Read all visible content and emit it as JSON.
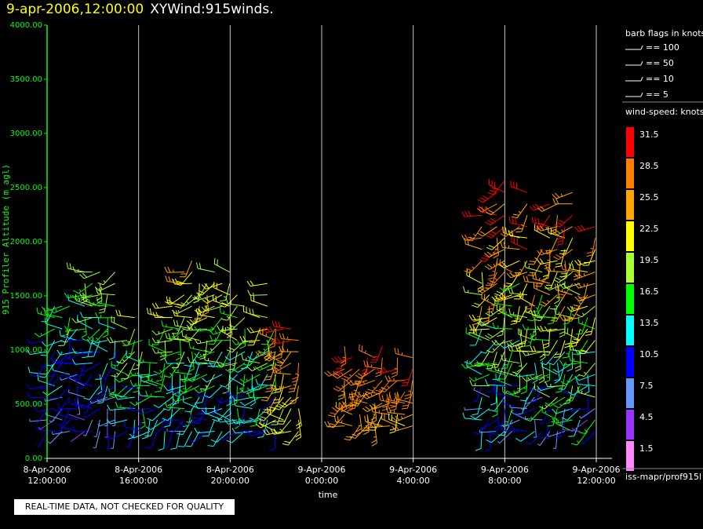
{
  "header": {
    "timestamp": "9-apr-2006,12:00:00",
    "title": "XYWind:915winds."
  },
  "chart_data": {
    "type": "wind-barb time-height plot",
    "ylabel": "915 Profiler Altitude (m agl)",
    "xlabel": "time",
    "ylim": [
      0,
      4000
    ],
    "y_ticks": [
      "0.00",
      "500.00",
      "1000.00",
      "1500.00",
      "2000.00",
      "2500.00",
      "3000.00",
      "3500.00",
      "4000.00"
    ],
    "x_ticks": [
      {
        "date": "8-Apr-2006",
        "time": "12:00:00"
      },
      {
        "date": "8-Apr-2006",
        "time": "16:00:00"
      },
      {
        "date": "8-Apr-2006",
        "time": "20:00:00"
      },
      {
        "date": "9-Apr-2006",
        "time": "0:00:00"
      },
      {
        "date": "9-Apr-2006",
        "time": "4:00:00"
      },
      {
        "date": "9-Apr-2006",
        "time": "8:00:00"
      },
      {
        "date": "9-Apr-2006",
        "time": "12:00:00"
      }
    ],
    "x_range_hours": [
      0,
      24
    ],
    "grid": "vertical lines at each 4-hour tick",
    "barb_legend": {
      "title": "barb flags in knots",
      "items": [
        "== 100",
        "== 50",
        "== 10",
        "== 5"
      ]
    },
    "color_scale": {
      "title": "wind-speed: knots",
      "values": [
        "31.5",
        "28.5",
        "25.5",
        "22.5",
        "19.5",
        "16.5",
        "13.5",
        "10.5",
        "7.5",
        "4.5",
        "1.5"
      ],
      "colors": [
        "#ff0000",
        "#ff8000",
        "#ffa500",
        "#ffff00",
        "#aaff33",
        "#00ff00",
        "#00ffff",
        "#0000ff",
        "#6699ff",
        "#9933ff",
        "#ff88ff"
      ]
    },
    "series_summary": [
      {
        "hours": [
          0.0,
          3.0
        ],
        "alt_range": [
          250,
          1800
        ],
        "speed_knots_range": [
          4,
          20
        ]
      },
      {
        "hours": [
          3.5,
          6.0
        ],
        "alt_range": [
          250,
          1500
        ],
        "speed_knots_range": [
          8,
          22
        ]
      },
      {
        "hours": [
          6.0,
          10.0
        ],
        "alt_range": [
          250,
          1900
        ],
        "speed_knots_range": [
          8,
          25
        ]
      },
      {
        "hours": [
          10.0,
          11.0
        ],
        "alt_range": [
          250,
          1400
        ],
        "speed_knots_range": [
          18,
          32
        ]
      },
      {
        "hours": [
          13.0,
          16.0
        ],
        "alt_range": [
          300,
          1100
        ],
        "speed_knots_range": [
          22,
          32
        ]
      },
      {
        "hours": [
          19.0,
          24.0
        ],
        "alt_range": [
          250,
          2600
        ],
        "speed_knots_range": [
          5,
          32
        ]
      }
    ],
    "source_label": "iss-mapr/prof915l"
  },
  "footer": {
    "note": "REAL-TIME DATA, NOT CHECKED FOR QUALITY"
  }
}
